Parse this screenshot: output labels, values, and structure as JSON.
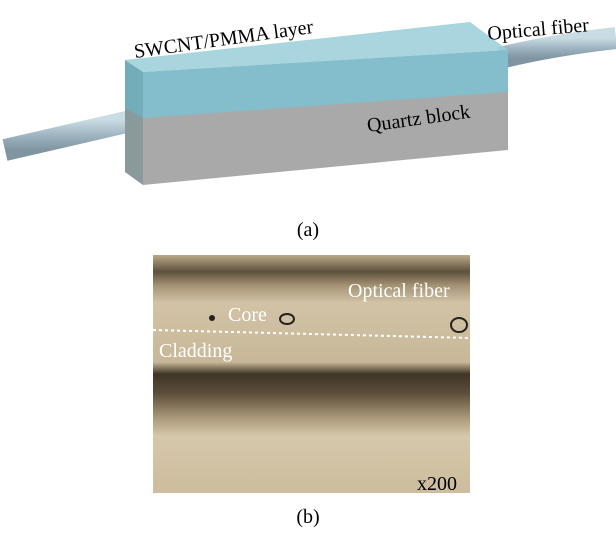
{
  "panel_a": {
    "layer_label": "SWCNT/PMMA layer",
    "fiber_label": "Optical fiber",
    "block_label": "Quartz block",
    "caption": "(a)"
  },
  "panel_b": {
    "fiber_label": "Optical fiber",
    "core_label": "Core",
    "cladding_label": "Cladding",
    "magnification": "x200",
    "caption": "(b)"
  }
}
